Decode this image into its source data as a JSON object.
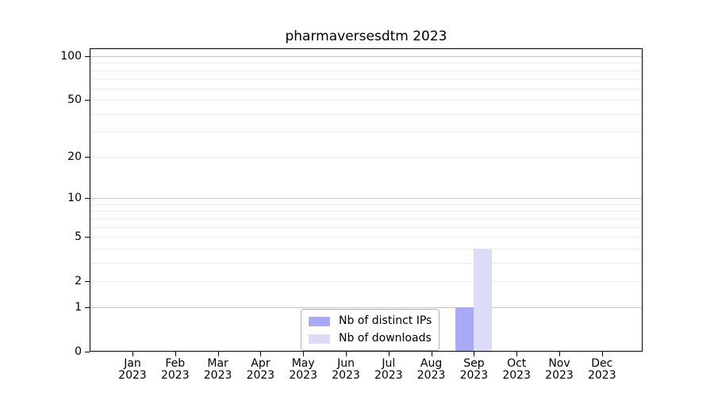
{
  "chart_data": {
    "type": "bar",
    "title": "pharmaversesdtm 2023",
    "scale": "log1p",
    "ylim": [
      0,
      113
    ],
    "grid": true,
    "legend_position": "lower-center",
    "x_tick_labels": [
      {
        "month": "Jan",
        "year": "2023"
      },
      {
        "month": "Feb",
        "year": "2023"
      },
      {
        "month": "Mar",
        "year": "2023"
      },
      {
        "month": "Apr",
        "year": "2023"
      },
      {
        "month": "May",
        "year": "2023"
      },
      {
        "month": "Jun",
        "year": "2023"
      },
      {
        "month": "Jul",
        "year": "2023"
      },
      {
        "month": "Aug",
        "year": "2023"
      },
      {
        "month": "Sep",
        "year": "2023"
      },
      {
        "month": "Oct",
        "year": "2023"
      },
      {
        "month": "Nov",
        "year": "2023"
      },
      {
        "month": "Dec",
        "year": "2023"
      }
    ],
    "y_ticks": [
      0,
      1,
      2,
      5,
      10,
      20,
      50,
      100
    ],
    "y_major_gridlines": [
      1,
      10,
      100
    ],
    "y_minor_gridlines": [
      2,
      3,
      4,
      5,
      6,
      7,
      8,
      9,
      20,
      30,
      40,
      50,
      60,
      70,
      80,
      90
    ],
    "series": [
      {
        "name": "Nb of distinct IPs",
        "color": "#a9a9f5",
        "values": [
          0,
          0,
          0,
          0,
          0,
          0,
          0,
          0,
          1,
          0,
          0,
          0
        ]
      },
      {
        "name": "Nb of downloads",
        "color": "#dcdcf8",
        "values": [
          0,
          0,
          0,
          0,
          0,
          0,
          0,
          0,
          4,
          0,
          0,
          0
        ]
      }
    ]
  }
}
